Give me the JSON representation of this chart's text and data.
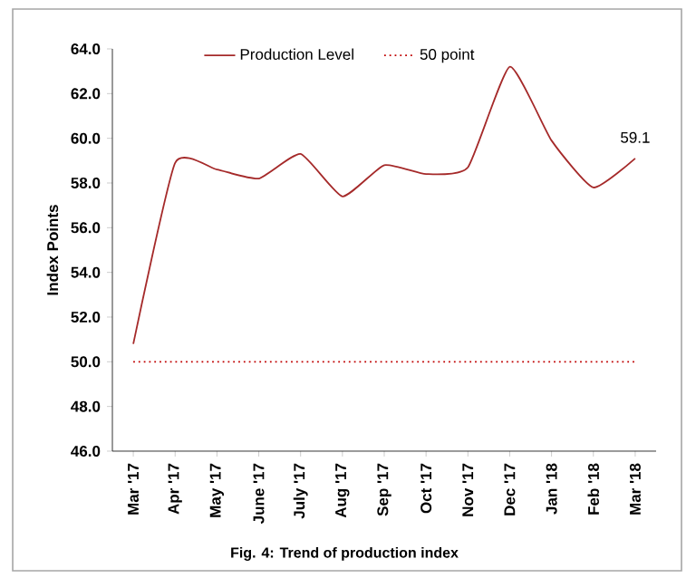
{
  "chart_data": {
    "type": "line",
    "ylabel": "Index Points",
    "categories": [
      "Mar '17",
      "Apr '17",
      "May '17",
      "June '17",
      "July '17",
      "Aug '17",
      "Sep '17",
      "Oct '17",
      "Nov '17",
      "Dec '17",
      "Jan '18",
      "Feb '18",
      "Mar '18"
    ],
    "series": [
      {
        "name": "Production Level",
        "color": "#a52a2a",
        "values": [
          50.8,
          58.9,
          58.6,
          58.2,
          59.3,
          57.4,
          58.8,
          58.4,
          58.7,
          63.2,
          59.9,
          57.8,
          59.1
        ],
        "value_labels": [
          null,
          null,
          null,
          null,
          null,
          null,
          null,
          null,
          null,
          null,
          null,
          null,
          "59.1"
        ]
      }
    ],
    "ref_lines": [
      {
        "axis": "y",
        "value": 50,
        "label": "50 point",
        "color": "#c00000",
        "line_style": "dotted"
      }
    ],
    "ylim": [
      46,
      64
    ],
    "yticks": [
      {
        "value": 46,
        "label": "46.0"
      },
      {
        "value": 48,
        "label": "48.0"
      },
      {
        "value": 50,
        "label": "50.0"
      },
      {
        "value": 52,
        "label": "52.0"
      },
      {
        "value": 54,
        "label": "54.0"
      },
      {
        "value": 56,
        "label": "56.0"
      },
      {
        "value": 58,
        "label": "58.0"
      },
      {
        "value": 60,
        "label": "60.0"
      },
      {
        "value": 62,
        "label": "62.0"
      },
      {
        "value": 64,
        "label": "64.0"
      }
    ],
    "legend": "top",
    "grid": false,
    "marker": "none",
    "line_style": "solid",
    "annotations": [
      "Fig. 4: Trend of  production  index"
    ]
  }
}
